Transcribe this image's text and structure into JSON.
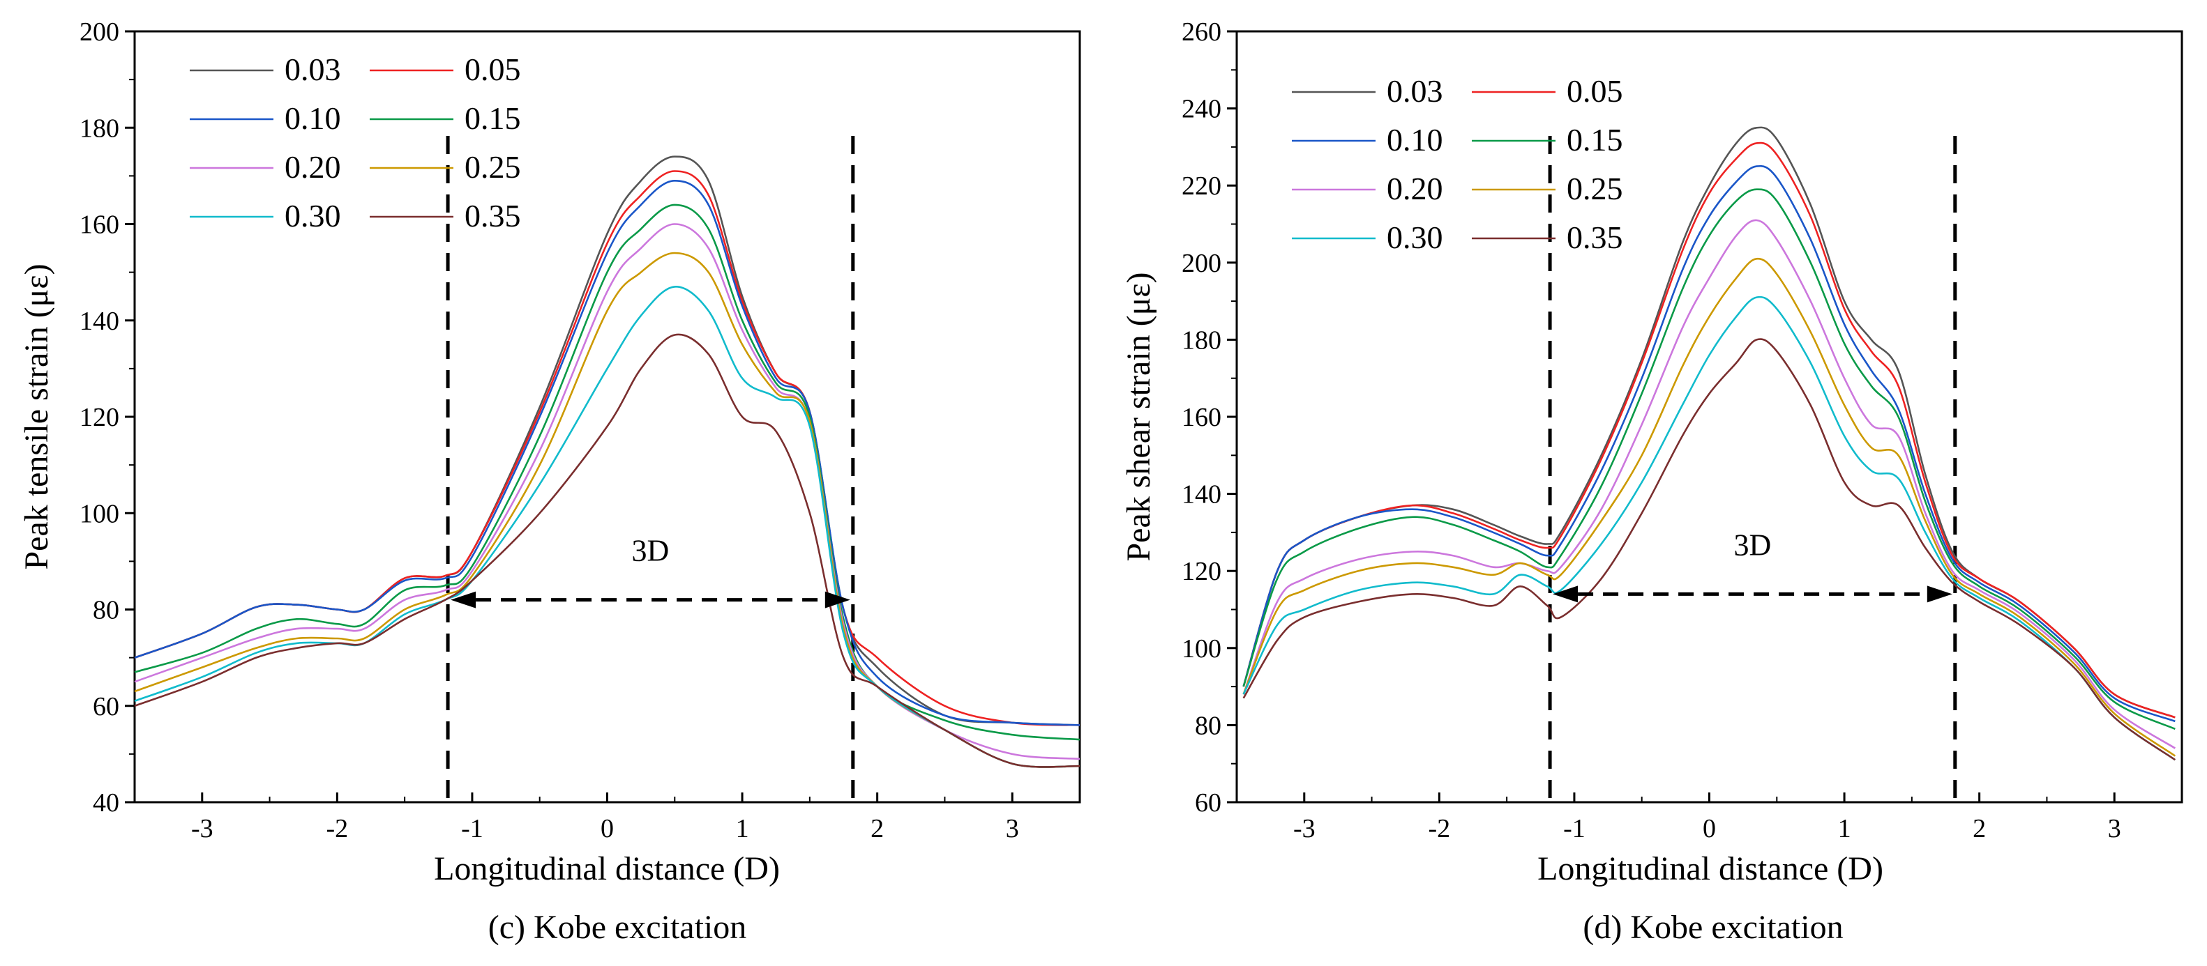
{
  "chart_data": [
    {
      "type": "line",
      "caption": "(c) Kobe excitation",
      "xlabel": "Longitudinal distance (D)",
      "ylabel": "Peak tensile strain (με)",
      "xlim": [
        -3.5,
        3.5
      ],
      "ylim": [
        40,
        200
      ],
      "xticks": [
        -3,
        -2,
        -1,
        0,
        1,
        2,
        3
      ],
      "yticks": [
        40,
        60,
        80,
        100,
        120,
        140,
        160,
        180,
        200
      ],
      "x": [
        -3.5,
        -3.0,
        -2.6,
        -2.3,
        -2.0,
        -1.8,
        -1.5,
        -1.2,
        -1.0,
        -0.5,
        0.0,
        0.25,
        0.5,
        0.75,
        1.0,
        1.25,
        1.5,
        1.75,
        2.0,
        2.5,
        3.0,
        3.5
      ],
      "series": [
        {
          "name": "0.03",
          "color": "#555555",
          "values": [
            70,
            75,
            80.5,
            81,
            80,
            80,
            86.5,
            87,
            92,
            122,
            158,
            169,
            174,
            169,
            145,
            129,
            121,
            80,
            68,
            58,
            56.5,
            56
          ]
        },
        {
          "name": "0.05",
          "color": "#ee2222",
          "values": [
            70,
            75,
            80.5,
            81,
            80,
            80,
            86.5,
            87,
            92,
            121,
            156,
            166,
            171,
            166,
            144,
            129,
            121,
            80,
            70,
            60,
            56.5,
            56
          ]
        },
        {
          "name": "0.10",
          "color": "#1a56c8",
          "values": [
            70,
            75,
            80.5,
            81,
            80,
            80,
            86,
            86.5,
            91,
            120,
            154,
            164,
            169,
            164,
            143,
            128,
            121,
            80,
            66,
            58,
            56.5,
            56
          ]
        },
        {
          "name": "0.15",
          "color": "#0a9a48",
          "values": [
            67,
            71,
            76,
            78,
            77,
            77,
            84,
            85,
            89,
            116,
            150,
            159,
            164,
            159,
            140,
            127,
            120,
            78,
            64,
            57,
            54,
            53
          ]
        },
        {
          "name": "0.20",
          "color": "#cc77dd",
          "values": [
            65,
            70,
            74,
            76,
            76,
            76,
            82,
            84,
            88,
            113,
            146,
            155,
            160,
            155,
            138,
            126,
            119,
            77,
            64,
            55,
            50,
            49
          ]
        },
        {
          "name": "0.25",
          "color": "#cc9900",
          "values": [
            63,
            68,
            72,
            74,
            74,
            74,
            80,
            83,
            87,
            110,
            142,
            150,
            154,
            150,
            135,
            125,
            119,
            76,
            64,
            55,
            48,
            47.5
          ]
        },
        {
          "name": "0.30",
          "color": "#11bbcc",
          "values": [
            61,
            66,
            71,
            73,
            73,
            73,
            79,
            82,
            86,
            106,
            130,
            141,
            147,
            142,
            128,
            124,
            118,
            75,
            64,
            55,
            48,
            47.5
          ]
        },
        {
          "name": "0.35",
          "color": "#7a2e2e",
          "values": [
            60,
            65,
            70,
            72,
            73,
            73,
            78,
            82,
            86,
            100,
            118,
            130,
            137,
            133,
            120,
            117,
            100,
            70,
            64,
            55,
            48,
            47.5
          ]
        }
      ],
      "annotations": {
        "vlines": [
          -1.18,
          1.82
        ],
        "arrow": {
          "y": 82,
          "label": "3D"
        }
      }
    },
    {
      "type": "line",
      "caption": "(d) Kobe excitation",
      "xlabel": "Longitudinal distance (D)",
      "ylabel": "Peak shear strain (με)",
      "xlim": [
        -3.5,
        3.5
      ],
      "ylim": [
        60,
        260
      ],
      "xticks": [
        -3,
        -2,
        -1,
        0,
        1,
        2,
        3
      ],
      "yticks": [
        60,
        80,
        100,
        120,
        140,
        160,
        180,
        200,
        220,
        240,
        260
      ],
      "x": [
        -3.45,
        -3.2,
        -3.0,
        -2.6,
        -2.2,
        -1.9,
        -1.6,
        -1.4,
        -1.2,
        -1.1,
        -0.8,
        -0.5,
        -0.2,
        0.0,
        0.2,
        0.35,
        0.5,
        0.75,
        1.0,
        1.2,
        1.4,
        1.6,
        1.8,
        2.0,
        2.3,
        2.7,
        3.0,
        3.45
      ],
      "series": [
        {
          "name": "0.03",
          "color": "#555555",
          "values": [
            90,
            120,
            128,
            134,
            137,
            136,
            132,
            129,
            127,
            130,
            150,
            175,
            205,
            220,
            231,
            235,
            232,
            215,
            190,
            180,
            172,
            145,
            125,
            118,
            112,
            100,
            88,
            82
          ]
        },
        {
          "name": "0.05",
          "color": "#ee2222",
          "values": [
            90,
            120,
            128,
            134,
            137,
            135,
            131,
            128,
            126,
            129,
            149,
            174,
            203,
            218,
            227,
            231,
            228,
            212,
            188,
            177,
            168,
            143,
            124,
            118,
            112,
            100,
            88,
            82
          ]
        },
        {
          "name": "0.10",
          "color": "#1a56c8",
          "values": [
            90,
            120,
            128,
            134,
            136,
            134,
            130,
            127,
            124,
            127,
            146,
            170,
            198,
            212,
            221,
            225,
            222,
            206,
            184,
            172,
            162,
            140,
            123,
            117,
            111,
            99,
            87,
            81
          ]
        },
        {
          "name": "0.15",
          "color": "#0a9a48",
          "values": [
            90,
            118,
            125,
            131,
            134,
            132,
            128,
            125,
            121,
            124,
            142,
            166,
            193,
            207,
            216,
            219,
            216,
            200,
            179,
            168,
            160,
            138,
            122,
            116,
            110,
            98,
            86,
            79
          ]
        },
        {
          "name": "0.20",
          "color": "#cc77dd",
          "values": [
            88,
            112,
            118,
            123,
            125,
            124,
            121,
            122,
            120,
            121,
            136,
            158,
            183,
            196,
            207,
            211,
            206,
            190,
            170,
            158,
            155,
            135,
            120,
            115,
            109,
            97,
            84,
            74
          ]
        },
        {
          "name": "0.25",
          "color": "#cc9900",
          "values": [
            88,
            110,
            115,
            120,
            122,
            121,
            119,
            122,
            119,
            119,
            133,
            150,
            173,
            186,
            196,
            201,
            197,
            182,
            163,
            152,
            150,
            133,
            119,
            114,
            108,
            96,
            83,
            72
          ]
        },
        {
          "name": "0.30",
          "color": "#11bbcc",
          "values": [
            88,
            106,
            110,
            115,
            117,
            116,
            114,
            119,
            116,
            115,
            127,
            143,
            163,
            176,
            186,
            191,
            188,
            174,
            155,
            146,
            144,
            130,
            118,
            113,
            107,
            95,
            82,
            71
          ]
        },
        {
          "name": "0.35",
          "color": "#7a2e2e",
          "values": [
            87,
            102,
            108,
            112,
            114,
            113,
            111,
            116,
            111,
            108,
            118,
            135,
            155,
            166,
            174,
            180,
            177,
            163,
            143,
            137,
            137,
            126,
            117,
            112,
            106,
            95,
            82,
            71
          ]
        }
      ],
      "annotations": {
        "vlines": [
          -1.18,
          1.82
        ],
        "arrow": {
          "y": 114,
          "label": "3D"
        }
      }
    }
  ]
}
